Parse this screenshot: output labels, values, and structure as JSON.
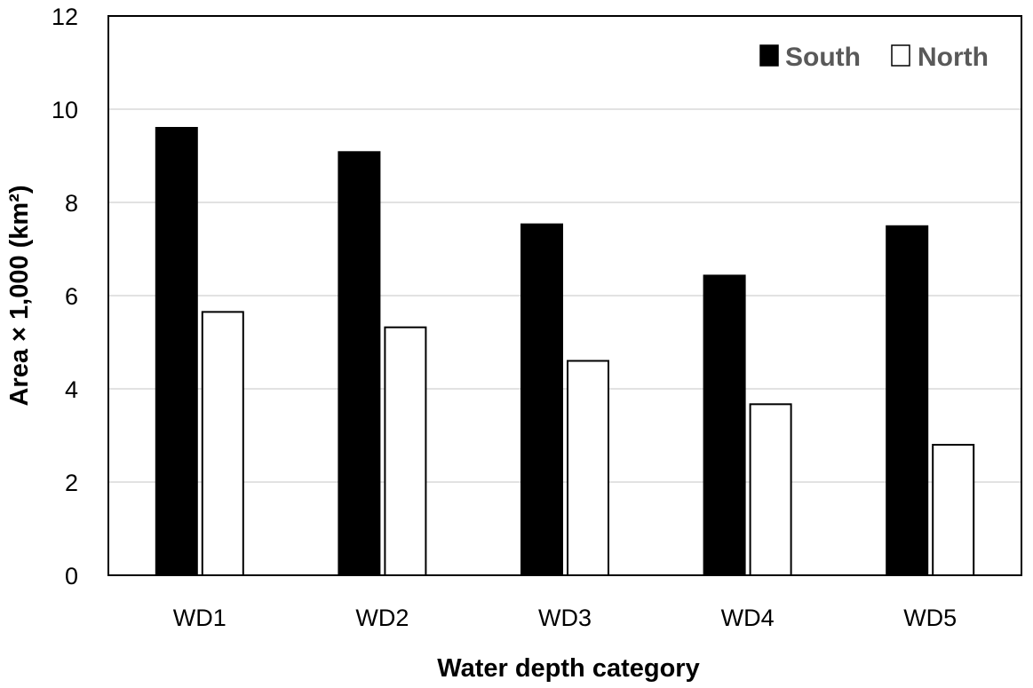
{
  "chart_data": {
    "type": "bar",
    "categories": [
      "WD1",
      "WD2",
      "WD3",
      "WD4",
      "WD5"
    ],
    "series": [
      {
        "name": "South",
        "color": "#000000",
        "values": [
          9.6,
          9.08,
          7.53,
          6.43,
          7.49
        ]
      },
      {
        "name": "North",
        "color": "#ffffff",
        "values": [
          5.65,
          5.32,
          4.6,
          3.67,
          2.8
        ]
      }
    ],
    "title": "",
    "xlabel": "Water depth category",
    "ylabel": "Area × 1,000 (km²)",
    "ylim": [
      0,
      12
    ],
    "yticks": [
      "0",
      "2",
      "4",
      "6",
      "8",
      "10",
      "12"
    ],
    "grid": true,
    "legend_position": "top-right"
  }
}
